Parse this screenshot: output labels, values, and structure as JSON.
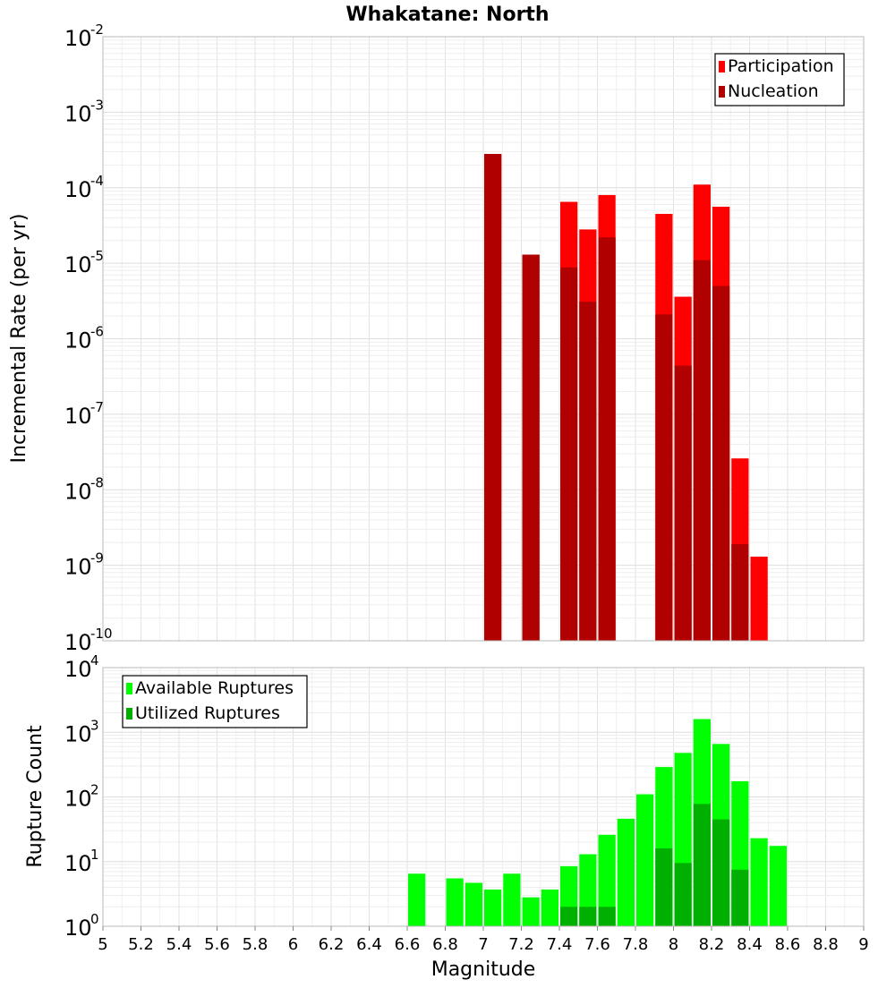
{
  "title": "Whakatane: North",
  "xlabel": "Magnitude",
  "chart_data": [
    {
      "type": "bar",
      "scale": "log",
      "ylabel": "Incremental Rate (per yr)",
      "xlim": [
        5,
        9
      ],
      "ylim_exponent": [
        -10,
        -2
      ],
      "legend": "top-right",
      "series": [
        {
          "name": "Participation",
          "color": "#ff0000",
          "points": [
            {
              "x": 7.05,
              "y": 0.00028
            },
            {
              "x": 7.25,
              "y": 1.3e-05
            },
            {
              "x": 7.45,
              "y": 6.5e-05
            },
            {
              "x": 7.55,
              "y": 2.8e-05
            },
            {
              "x": 7.65,
              "y": 8e-05
            },
            {
              "x": 7.95,
              "y": 4.5e-05
            },
            {
              "x": 8.05,
              "y": 3.6e-06
            },
            {
              "x": 8.15,
              "y": 0.00011
            },
            {
              "x": 8.25,
              "y": 5.6e-05
            },
            {
              "x": 8.35,
              "y": 2.6e-08
            },
            {
              "x": 8.45,
              "y": 1.3e-09
            }
          ]
        },
        {
          "name": "Nucleation",
          "color": "#b00000",
          "points": [
            {
              "x": 7.05,
              "y": 0.00028
            },
            {
              "x": 7.25,
              "y": 1.3e-05
            },
            {
              "x": 7.45,
              "y": 8.8e-06
            },
            {
              "x": 7.55,
              "y": 3.1e-06
            },
            {
              "x": 7.65,
              "y": 2.2e-05
            },
            {
              "x": 7.95,
              "y": 2.1e-06
            },
            {
              "x": 8.05,
              "y": 4.4e-07
            },
            {
              "x": 8.15,
              "y": 1.1e-05
            },
            {
              "x": 8.25,
              "y": 5e-06
            },
            {
              "x": 8.35,
              "y": 1.9e-09
            }
          ]
        }
      ]
    },
    {
      "type": "bar",
      "scale": "log",
      "ylabel": "Rupture Count",
      "xlim": [
        5,
        9
      ],
      "ylim_exponent": [
        0,
        4
      ],
      "legend": "top-left",
      "series": [
        {
          "name": "Available Ruptures",
          "color": "#00ff00",
          "points": [
            {
              "x": 6.65,
              "y": 6.5
            },
            {
              "x": 6.85,
              "y": 5.5
            },
            {
              "x": 6.95,
              "y": 4.7
            },
            {
              "x": 7.05,
              "y": 3.7
            },
            {
              "x": 7.15,
              "y": 6.5
            },
            {
              "x": 7.25,
              "y": 2.8
            },
            {
              "x": 7.35,
              "y": 3.7
            },
            {
              "x": 7.45,
              "y": 8.5
            },
            {
              "x": 7.55,
              "y": 13
            },
            {
              "x": 7.65,
              "y": 26
            },
            {
              "x": 7.75,
              "y": 46
            },
            {
              "x": 7.85,
              "y": 110
            },
            {
              "x": 7.95,
              "y": 290
            },
            {
              "x": 8.05,
              "y": 480
            },
            {
              "x": 8.15,
              "y": 1600
            },
            {
              "x": 8.25,
              "y": 660
            },
            {
              "x": 8.35,
              "y": 175
            },
            {
              "x": 8.45,
              "y": 23
            },
            {
              "x": 8.55,
              "y": 17.5
            }
          ]
        },
        {
          "name": "Utilized Ruptures",
          "color": "#00b000",
          "points": [
            {
              "x": 7.05,
              "y": 1
            },
            {
              "x": 7.25,
              "y": 1
            },
            {
              "x": 7.45,
              "y": 2
            },
            {
              "x": 7.55,
              "y": 2
            },
            {
              "x": 7.65,
              "y": 2
            },
            {
              "x": 7.95,
              "y": 16
            },
            {
              "x": 8.05,
              "y": 9.5
            },
            {
              "x": 8.15,
              "y": 78
            },
            {
              "x": 8.25,
              "y": 45
            },
            {
              "x": 8.35,
              "y": 7.5
            },
            {
              "x": 8.45,
              "y": 1
            }
          ]
        }
      ]
    }
  ],
  "xticks": [
    "5",
    "5.2",
    "5.4",
    "5.6",
    "5.8",
    "6",
    "6.2",
    "6.4",
    "6.6",
    "6.8",
    "7",
    "7.2",
    "7.4",
    "7.6",
    "7.8",
    "8",
    "8.2",
    "8.4",
    "8.6",
    "8.8",
    "9"
  ]
}
